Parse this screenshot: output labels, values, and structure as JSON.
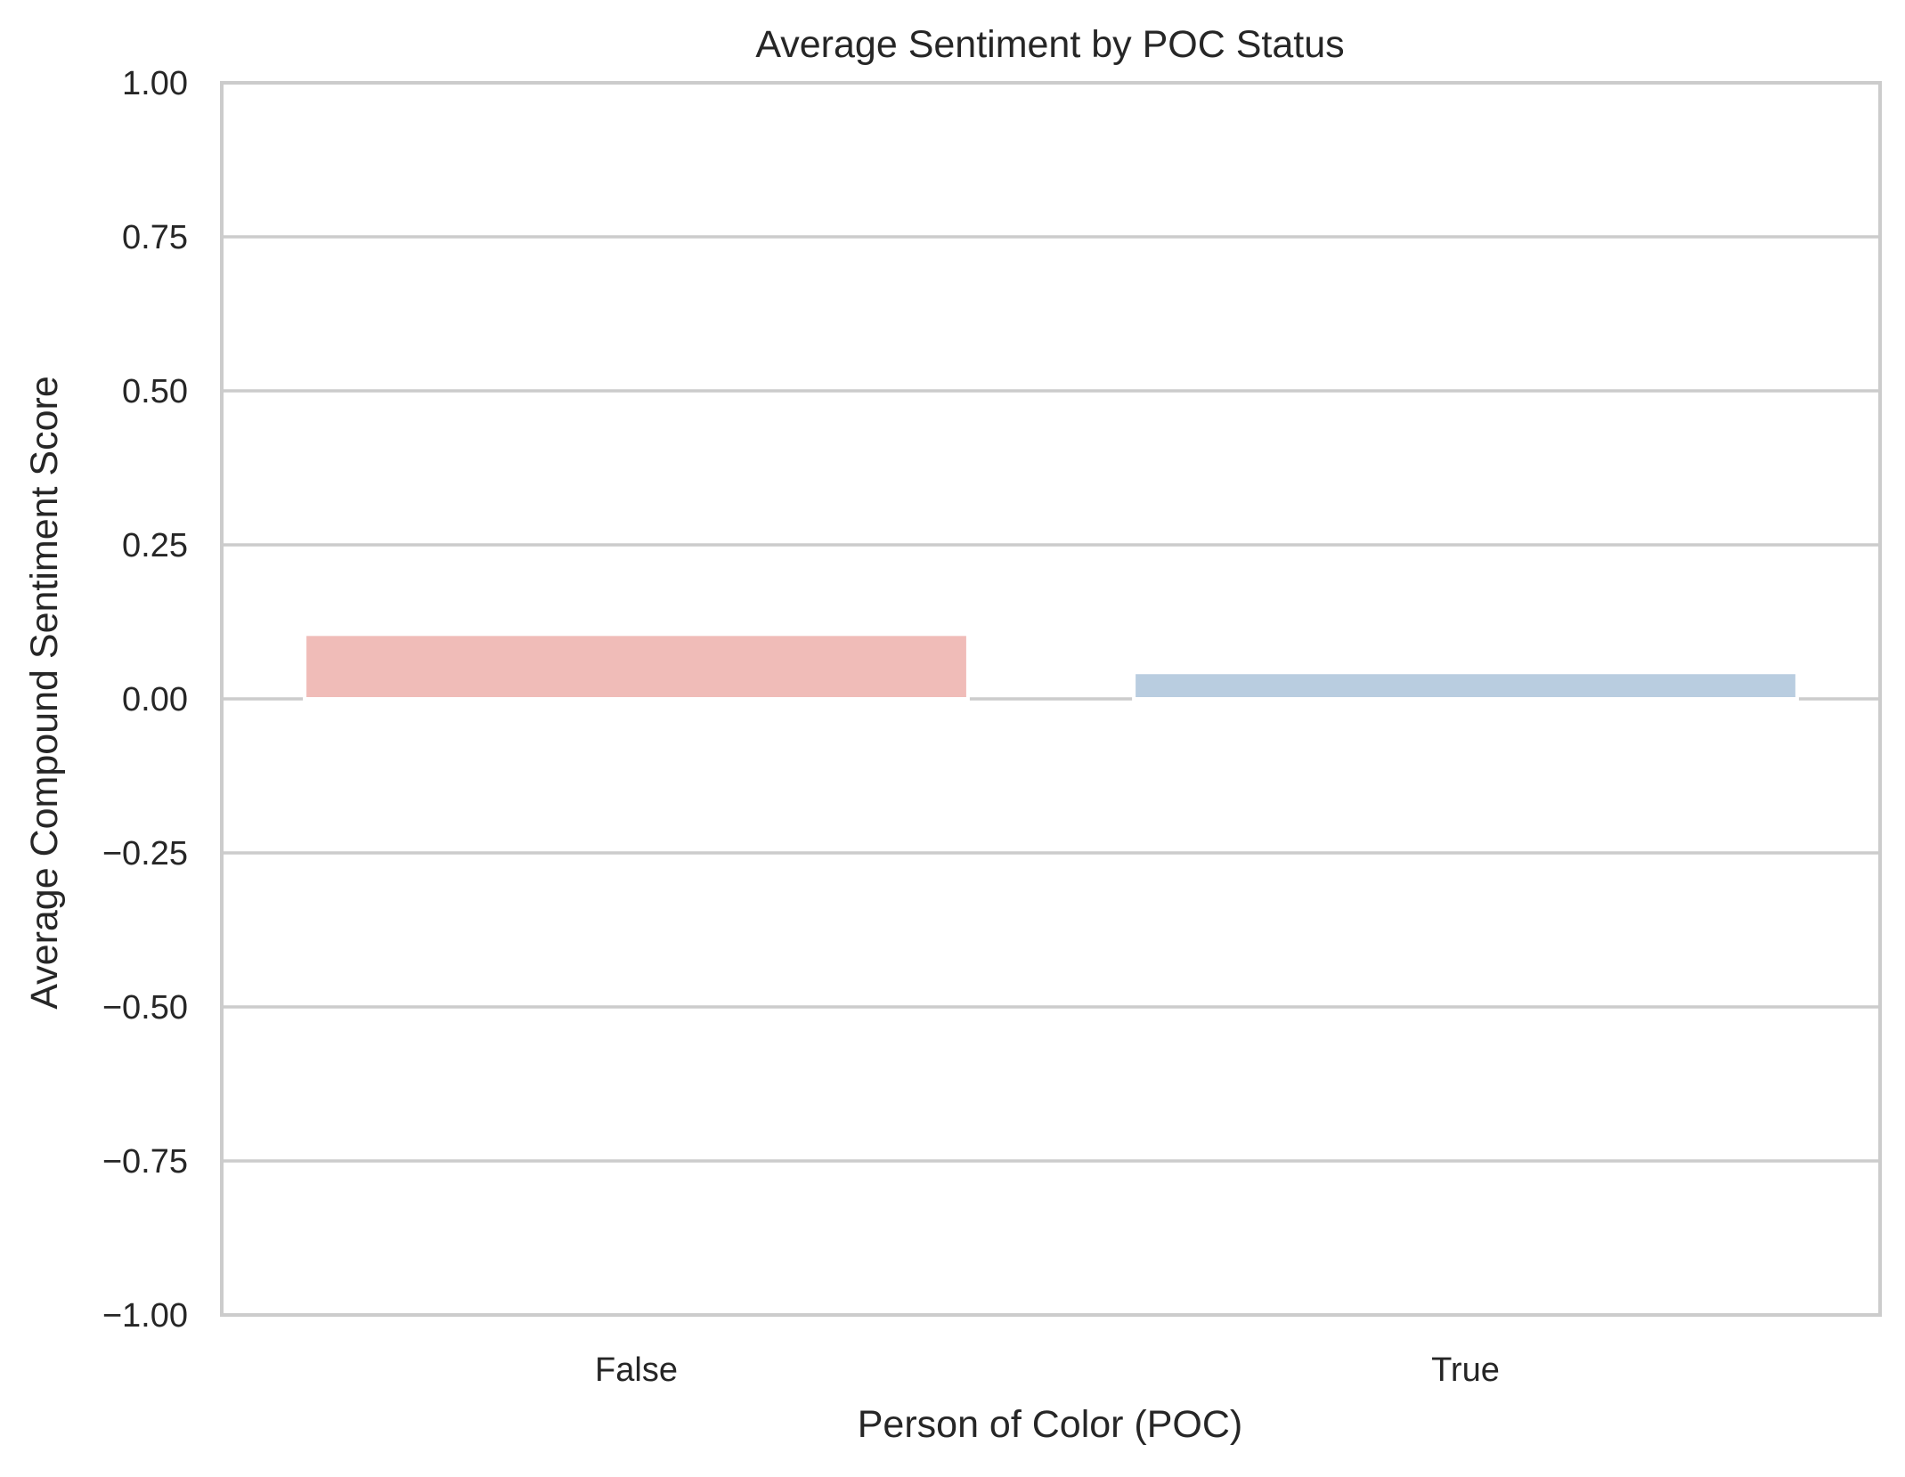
{
  "chart_data": {
    "type": "bar",
    "title": "Average Sentiment by POC Status",
    "xlabel": "Person of Color (POC)",
    "ylabel": "Average Compound Sentiment Score",
    "categories": [
      "False",
      "True"
    ],
    "values": [
      0.105,
      0.043
    ],
    "colors": [
      "#f0bcb8",
      "#b9cde0"
    ],
    "ylim": [
      -1.0,
      1.0
    ],
    "yticks": [
      1.0,
      0.75,
      0.5,
      0.25,
      0.0,
      -0.25,
      -0.5,
      -0.75,
      -1.0
    ],
    "ytick_labels": [
      "1.00",
      "0.75",
      "0.50",
      "0.25",
      "0.00",
      "−0.25",
      "−0.50",
      "−0.75",
      "−1.00"
    ],
    "grid": true,
    "legend": "none"
  }
}
